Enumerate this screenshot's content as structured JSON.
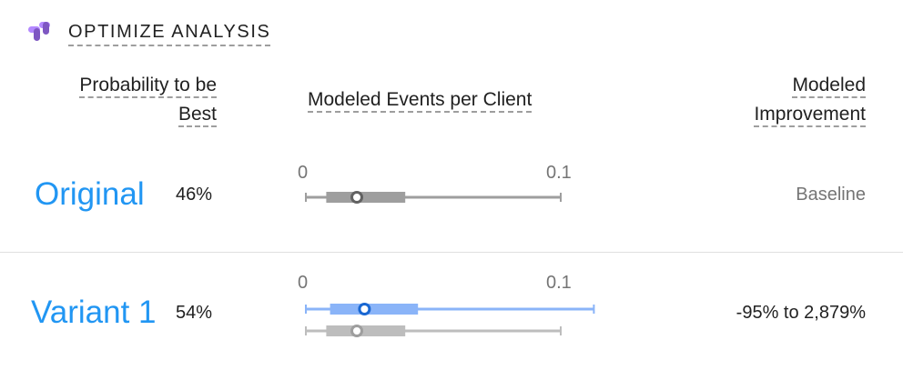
{
  "header": {
    "title": "OPTIMIZE ANALYSIS",
    "logo_icon": "optimize-logo-icon",
    "logo_colors": [
      "#7e57c2",
      "#b388ff"
    ]
  },
  "columns": {
    "probability_line1": "Probability to be",
    "probability_line2": "Best",
    "events": "Modeled Events per Client",
    "improvement_line1": "Modeled",
    "improvement_line2": "Improvement"
  },
  "chart_data": {
    "type": "range",
    "x": [
      "0",
      "0.1"
    ],
    "xlim": [
      0,
      0.1
    ],
    "series": [
      {
        "name": "Original",
        "probability": "46%",
        "improvement": "Baseline",
        "intervals": [
          {
            "role": "primary",
            "color": "#9e9e9e",
            "min": 0,
            "q_low": 0.008,
            "median": 0.02,
            "q_high": 0.039,
            "max": 0.1
          }
        ]
      },
      {
        "name": "Variant 1",
        "probability": "54%",
        "improvement": "-95% to 2,879%",
        "intervals": [
          {
            "role": "primary",
            "color": "#8ab4f8",
            "median_color": "#1967d2",
            "min": 0,
            "q_low": 0.0095,
            "median": 0.023,
            "q_high": 0.044,
            "max": 0.113
          },
          {
            "role": "baseline",
            "color": "#bdbdbd",
            "median_color": "#9e9e9e",
            "min": 0,
            "q_low": 0.008,
            "median": 0.02,
            "q_high": 0.039,
            "max": 0.1
          }
        ]
      }
    ]
  }
}
